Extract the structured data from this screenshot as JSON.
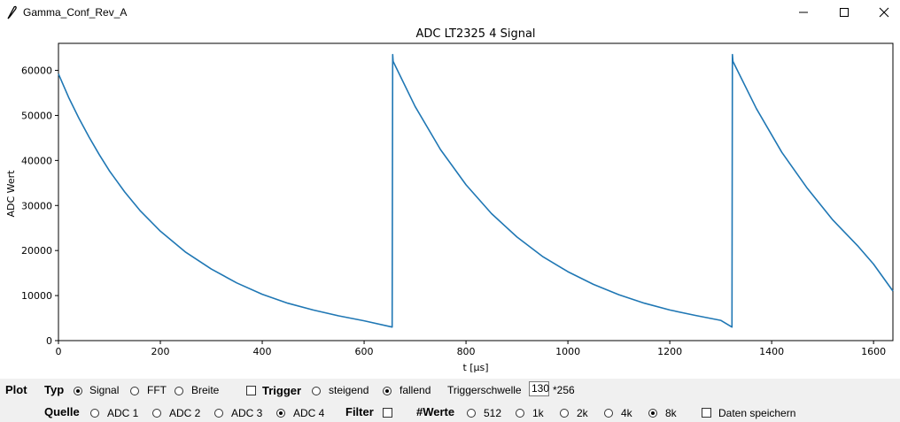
{
  "window": {
    "title": "Gamma_Conf_Rev_A"
  },
  "chart_data": {
    "type": "line",
    "title": "ADC LT2325 4 Signal",
    "xlabel": "t [μs]",
    "ylabel": "ADC Wert",
    "xlim": [
      0,
      1638
    ],
    "ylim": [
      0,
      66000
    ],
    "xticks": [
      0,
      200,
      400,
      600,
      800,
      1000,
      1200,
      1400,
      1600
    ],
    "yticks": [
      0,
      10000,
      20000,
      30000,
      40000,
      50000,
      60000
    ],
    "grid": false,
    "color": "#1f77b4",
    "series": [
      {
        "values": [
          [
            0,
            59200
          ],
          [
            20,
            54000
          ],
          [
            40,
            49400
          ],
          [
            60,
            45200
          ],
          [
            80,
            41300
          ],
          [
            100,
            37700
          ],
          [
            130,
            33000
          ],
          [
            160,
            28900
          ],
          [
            200,
            24300
          ],
          [
            250,
            19600
          ],
          [
            300,
            15900
          ],
          [
            350,
            12800
          ],
          [
            400,
            10300
          ],
          [
            450,
            8300
          ],
          [
            500,
            6800
          ],
          [
            550,
            5500
          ],
          [
            600,
            4400
          ],
          [
            655,
            3000
          ],
          [
            656,
            63500
          ],
          [
            657,
            62000
          ],
          [
            700,
            52000
          ],
          [
            750,
            42400
          ],
          [
            800,
            34600
          ],
          [
            850,
            28200
          ],
          [
            900,
            23000
          ],
          [
            950,
            18700
          ],
          [
            1000,
            15300
          ],
          [
            1050,
            12500
          ],
          [
            1100,
            10200
          ],
          [
            1150,
            8300
          ],
          [
            1200,
            6800
          ],
          [
            1250,
            5600
          ],
          [
            1300,
            4500
          ],
          [
            1322,
            3000
          ],
          [
            1323,
            63500
          ],
          [
            1324,
            62000
          ],
          [
            1370,
            51500
          ],
          [
            1420,
            41800
          ],
          [
            1470,
            33800
          ],
          [
            1520,
            26800
          ],
          [
            1570,
            20900
          ],
          [
            1600,
            17000
          ],
          [
            1638,
            11000
          ]
        ]
      }
    ]
  },
  "controls": {
    "plot_label": "Plot",
    "typ_label": "Typ",
    "typ_options": [
      "Signal",
      "FFT",
      "Breite"
    ],
    "typ_selected": "Signal",
    "trigger_label": "Trigger",
    "trigger_options": [
      "steigend",
      "fallend"
    ],
    "trigger_selected": "fallend",
    "triggerschwelle_label": "Triggerschwelle",
    "triggerschwelle_value": "130",
    "triggerschwelle_unit": "*256",
    "quelle_label": "Quelle",
    "quelle_options": [
      "ADC 1",
      "ADC 2",
      "ADC 3",
      "ADC 4"
    ],
    "quelle_selected": "ADC 4",
    "filter_label": "Filter",
    "werte_label": "#Werte",
    "werte_options": [
      "512",
      "1k",
      "2k",
      "4k",
      "8k"
    ],
    "werte_selected": "8k",
    "save_label": "Daten speichern"
  }
}
